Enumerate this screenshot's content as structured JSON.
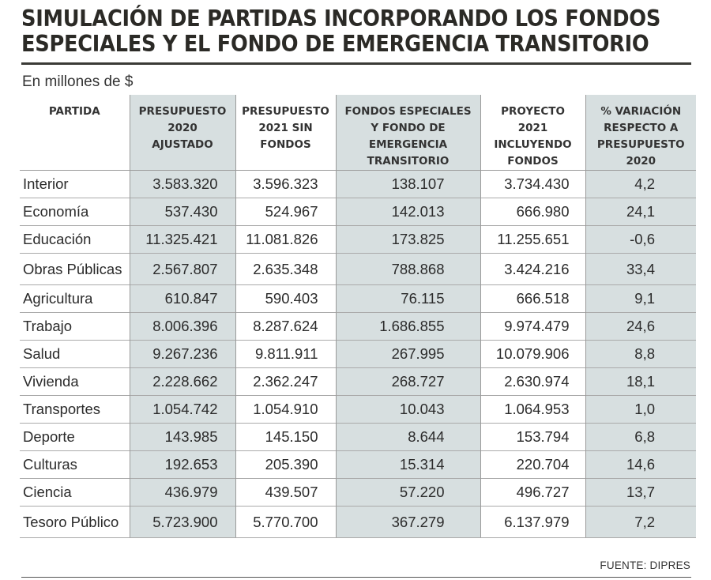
{
  "title_line1": "SIMULACIÓN DE PARTIDAS INCORPORANDO LOS FONDOS",
  "title_line2": "ESPECIALES Y EL FONDO DE EMERGENCIA TRANSITORIO",
  "subtitle": "En millones de $",
  "headers": {
    "partida": "PARTIDA",
    "col1": [
      "PRESUPUESTO",
      "2020",
      "AJUSTADO"
    ],
    "col2": [
      "PRESUPUESTO",
      "2021 SIN",
      "FONDOS"
    ],
    "col3": [
      "FONDOS ESPECIALES",
      "Y FONDO DE",
      "EMERGENCIA",
      "TRANSITORIO"
    ],
    "col4": [
      "PROYECTO",
      "2021",
      "INCLUYENDO",
      "FONDOS"
    ],
    "col5": [
      "% VARIACIÓN",
      "RESPECTO A",
      "PRESUPUESTO",
      "2020"
    ]
  },
  "rows": [
    {
      "partida": "Interior",
      "p2020": "3.583.320",
      "p2021": "3.596.323",
      "fondos": "138.107",
      "proyecto": "3.734.430",
      "var": "4,2"
    },
    {
      "partida": "Economía",
      "p2020": "537.430",
      "p2021": "524.967",
      "fondos": "142.013",
      "proyecto": "666.980",
      "var": "24,1"
    },
    {
      "partida": "Educación",
      "p2020": "11.325.421",
      "p2021": "11.081.826",
      "fondos": "173.825",
      "proyecto": "11.255.651",
      "var": "-0,6"
    },
    {
      "partida": "Obras Públicas",
      "p2020": "2.567.807",
      "p2021": "2.635.348",
      "fondos": "788.868",
      "proyecto": "3.424.216",
      "var": "33,4"
    },
    {
      "partida": "Agricultura",
      "p2020": "610.847",
      "p2021": "590.403",
      "fondos": "76.115",
      "proyecto": "666.518",
      "var": "9,1"
    },
    {
      "partida": "Trabajo",
      "p2020": "8.006.396",
      "p2021": "8.287.624",
      "fondos": "1.686.855",
      "proyecto": "9.974.479",
      "var": "24,6"
    },
    {
      "partida": "Salud",
      "p2020": "9.267.236",
      "p2021": "9.811.911",
      "fondos": "267.995",
      "proyecto": "10.079.906",
      "var": "8,8"
    },
    {
      "partida": "Vivienda",
      "p2020": "2.228.662",
      "p2021": "2.362.247",
      "fondos": "268.727",
      "proyecto": "2.630.974",
      "var": "18,1"
    },
    {
      "partida": "Transportes",
      "p2020": "1.054.742",
      "p2021": "1.054.910",
      "fondos": "10.043",
      "proyecto": "1.064.953",
      "var": "1,0"
    },
    {
      "partida": "Deporte",
      "p2020": "143.985",
      "p2021": "145.150",
      "fondos": "8.644",
      "proyecto": "153.794",
      "var": "6,8"
    },
    {
      "partida": "Culturas",
      "p2020": "192.653",
      "p2021": "205.390",
      "fondos": "15.314",
      "proyecto": "220.704",
      "var": "14,6"
    },
    {
      "partida": "Ciencia",
      "p2020": "436.979",
      "p2021": "439.507",
      "fondos": "57.220",
      "proyecto": "496.727",
      "var": "13,7"
    },
    {
      "partida": "Tesoro Público",
      "p2020": "5.723.900",
      "p2021": "5.770.700",
      "fondos": "367.279",
      "proyecto": "6.137.979",
      "var": "7,2"
    }
  ],
  "source": "FUENTE: DIPRES"
}
